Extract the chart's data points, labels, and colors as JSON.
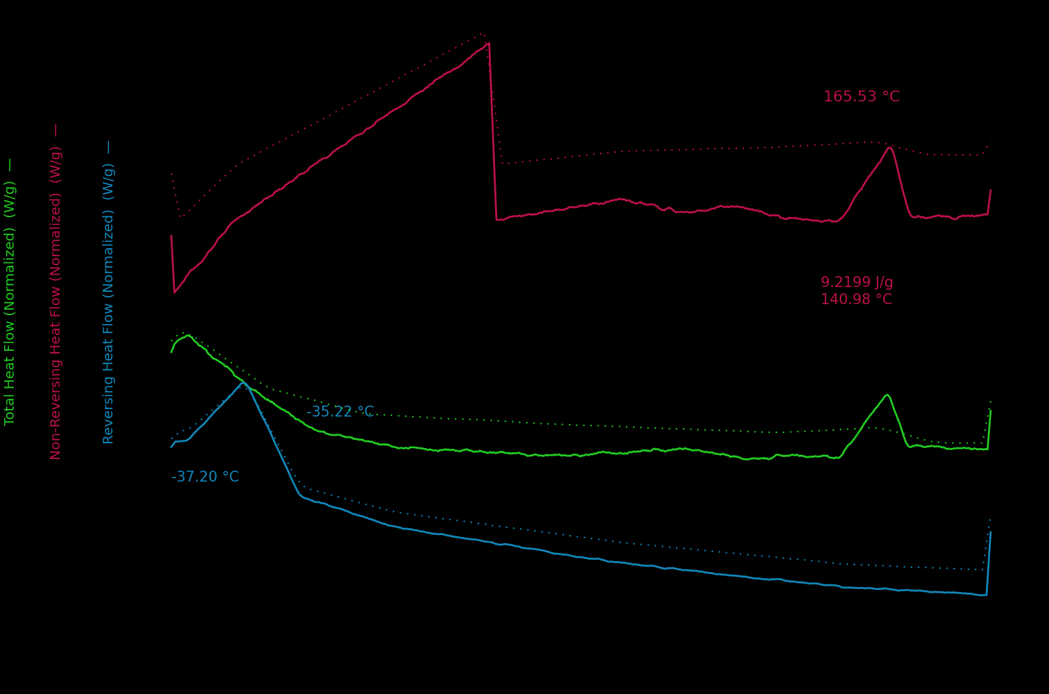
{
  "background_color": "#000000",
  "colors": {
    "green": "#22CC22",
    "crimson": "#BB1144",
    "blue": "#1188BB",
    "text_crimson": "#BB1144",
    "text_blue": "#1188BB"
  },
  "ylabel_total": "Total Heat Flow (Normalized)  (W/g)  —",
  "ylabel_nonrev": "Non-Reversing Heat Flow (Normalized)  (W/g)  —",
  "ylabel_rev": "Reversing Heat Flow (Normalized)  (W/g)  —",
  "ann_peak_temp": "165.53 °C",
  "ann_enthalpy": "9.2199 J/g",
  "ann_onset": "140.98 °C",
  "ann_tg1": "-35.22 °C",
  "ann_tg2": "-37.20 °C"
}
